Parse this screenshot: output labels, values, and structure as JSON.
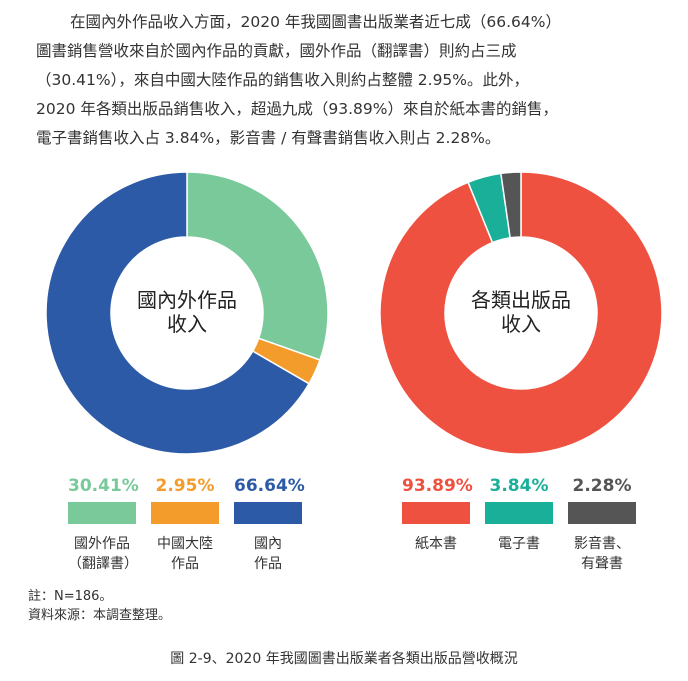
{
  "intro": {
    "lines": [
      "在國內外作品收入方面，2020 年我國圖書出版業者近七成（66.64%）",
      "圖書銷售營收來自於國內作品的貢獻，國外作品（翻譯書）則約占三成",
      "（30.41%），來自中國大陸作品的銷售收入則約占整體 2.95%。此外，",
      "2020 年各類出版品銷售收入，超過九成（93.89%）來自於紙本書的銷售，",
      "電子書銷售收入占 3.84%，影音書 / 有聲書銷售收入則占 2.28%。"
    ]
  },
  "chart_data": [
    {
      "type": "pie",
      "title": "國內外作品收入",
      "center_label": [
        "國內外作品",
        "收入"
      ],
      "slices": [
        {
          "name": "國外作品（翻譯書）",
          "label_lines": [
            "國外作品",
            "（翻譯書）"
          ],
          "value": 30.41,
          "value_label": "30.41%",
          "color": "#7ac99a"
        },
        {
          "name": "中國大陸作品",
          "label_lines": [
            "中國大陸",
            "作品"
          ],
          "value": 2.95,
          "value_label": "2.95%",
          "color": "#f39c2b"
        },
        {
          "name": "國內作品",
          "label_lines": [
            "國內",
            "作品"
          ],
          "value": 66.64,
          "value_label": "66.64%",
          "color": "#2c5aa6"
        }
      ]
    },
    {
      "type": "pie",
      "title": "各類出版品收入",
      "center_label": [
        "各類出版品",
        "收入"
      ],
      "slices": [
        {
          "name": "紙本書",
          "label_lines": [
            "紙本書"
          ],
          "value": 93.89,
          "value_label": "93.89%",
          "color": "#ee5140"
        },
        {
          "name": "電子書",
          "label_lines": [
            "電子書"
          ],
          "value": 3.84,
          "value_label": "3.84%",
          "color": "#1aaf98"
        },
        {
          "name": "影音書、有聲書",
          "label_lines": [
            "影音書、",
            "有聲書"
          ],
          "value": 2.28,
          "value_label": "2.28%",
          "color": "#555555"
        }
      ]
    }
  ],
  "notes": [
    "註：N=186。",
    "資料來源：本調查整理。"
  ],
  "caption": "圖 2-9、2020 年我國圖書出版業者各類出版品營收概況"
}
